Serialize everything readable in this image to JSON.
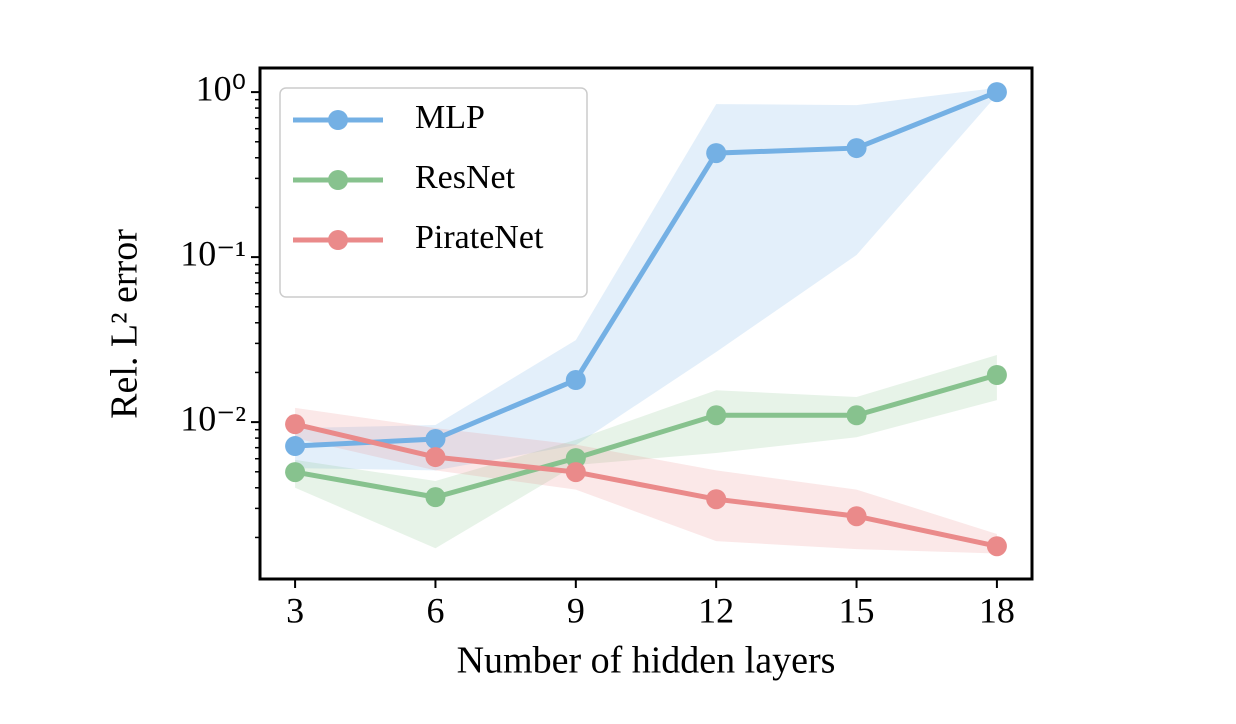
{
  "chart_data": {
    "type": "line",
    "xlabel": "Number of hidden layers",
    "ylabel": "Rel. L² error",
    "x": [
      3,
      6,
      9,
      12,
      15,
      18
    ],
    "xlim": [
      2.25,
      18.75
    ],
    "xticks": [
      3,
      6,
      9,
      12,
      15,
      18
    ],
    "ylim": [
      0.00112,
      1.4
    ],
    "yscale": "log",
    "yticks": [
      {
        "value": 0.01,
        "label": "10⁻²"
      },
      {
        "value": 0.1,
        "label": "10⁻¹"
      },
      {
        "value": 1,
        "label": "10⁰"
      }
    ],
    "yminorticks": [
      0.002,
      0.003,
      0.004,
      0.005,
      0.006,
      0.007,
      0.008,
      0.009,
      0.02,
      0.03,
      0.04,
      0.05,
      0.06,
      0.07,
      0.08,
      0.09,
      0.2,
      0.3,
      0.4,
      0.5,
      0.6,
      0.7,
      0.8,
      0.9
    ],
    "legend": "upper left",
    "series": [
      {
        "name": "MLP",
        "color": "#74b0e4",
        "values": [
          0.00716,
          0.0079,
          0.018,
          0.427,
          0.458,
          1.0
        ],
        "lower": [
          0.00526,
          0.0051,
          0.00726,
          0.0266,
          0.103,
          0.96
        ],
        "upper": [
          0.0092,
          0.0096,
          0.0314,
          0.846,
          0.834,
          1.06
        ]
      },
      {
        "name": "ResNet",
        "color": "#87c28e",
        "values": [
          0.00498,
          0.00351,
          0.00605,
          0.011,
          0.011,
          0.0193
        ],
        "lower": [
          0.004,
          0.00172,
          0.0055,
          0.0065,
          0.0081,
          0.0136
        ],
        "upper": [
          0.0059,
          0.0044,
          0.0078,
          0.0156,
          0.0142,
          0.0255
        ]
      },
      {
        "name": "PirateNet",
        "color": "#ea8a8a",
        "values": [
          0.00972,
          0.00614,
          0.00498,
          0.00341,
          0.00269,
          0.00177
        ],
        "lower": [
          0.008,
          0.0051,
          0.0039,
          0.0019,
          0.0017,
          0.0016
        ],
        "upper": [
          0.0122,
          0.0092,
          0.0073,
          0.0051,
          0.0039,
          0.0021
        ]
      }
    ]
  }
}
